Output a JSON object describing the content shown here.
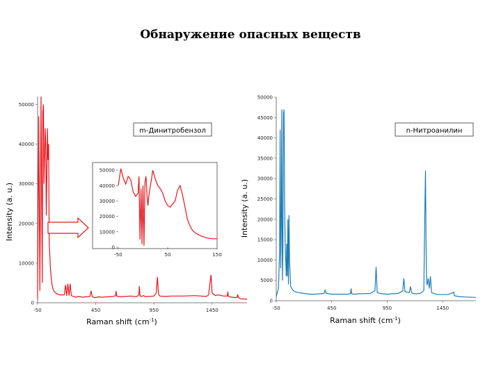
{
  "slide": {
    "title": "Обнаружение опасных веществ"
  },
  "chart_data": [
    {
      "type": "line",
      "legend": "m-Динитробензол",
      "ylabel": "Intensity (a. u.)",
      "xlabel_main": "Raman shift (cm",
      "xlabel_sup": "-1",
      "xlabel_end": ")",
      "xlim": [
        -50,
        1750
      ],
      "ylim": [
        0,
        52000
      ],
      "xticks": [
        -50,
        450,
        950,
        1450
      ],
      "yticks": [
        0,
        10000,
        20000,
        30000,
        40000,
        50000
      ],
      "color": "#e8141a",
      "grid": false,
      "series": [
        {
          "x": [
            -50,
            -40,
            -30,
            -20,
            -10,
            -5,
            0,
            5,
            10,
            15,
            20,
            25,
            30,
            35,
            40,
            45,
            50,
            55,
            60,
            65,
            70,
            75,
            80,
            85,
            90,
            95,
            100,
            110,
            120,
            130,
            140,
            150,
            160,
            170,
            180,
            190,
            200,
            210,
            220,
            230,
            240,
            250,
            260,
            270,
            280,
            290,
            300,
            320,
            340,
            360,
            380,
            400,
            410,
            420,
            430,
            440,
            460,
            480,
            500,
            550,
            600,
            620,
            625,
            630,
            640,
            660,
            700,
            750,
            800,
            820,
            825,
            830,
            840,
            860,
            880,
            900,
            950,
            970,
            980,
            990,
            1000,
            1050,
            1100,
            1200,
            1300,
            1400,
            1420,
            1435,
            1440,
            1445,
            1450,
            1460,
            1480,
            1500,
            1550,
            1580,
            1585,
            1590,
            1600,
            1650,
            1665,
            1670,
            1675,
            1680,
            1700,
            1750
          ],
          "y": [
            1000,
            47000,
            3000,
            52000,
            5000,
            48000,
            50000,
            30000,
            36000,
            44000,
            40000,
            22000,
            33000,
            44000,
            36000,
            40000,
            15000,
            12000,
            9000,
            7000,
            5500,
            4500,
            3800,
            3300,
            3000,
            2800,
            2600,
            2400,
            2200,
            2100,
            2000,
            2000,
            2000,
            2000,
            2000,
            4500,
            1800,
            4800,
            1800,
            4800,
            1800,
            1700,
            1600,
            1500,
            1400,
            1500,
            1600,
            1500,
            1400,
            1500,
            1500,
            1600,
            3000,
            1500,
            1400,
            1300,
            1400,
            1500,
            1400,
            1500,
            1600,
            1800,
            3000,
            1700,
            1600,
            1500,
            1600,
            1700,
            1500,
            2000,
            4200,
            1800,
            1600,
            1800,
            1500,
            1600,
            1700,
            2500,
            6500,
            2200,
            1700,
            1600,
            1700,
            1700,
            1800,
            1600,
            2000,
            5800,
            7000,
            5000,
            2500,
            2200,
            1800,
            2000,
            1700,
            1700,
            2800,
            1600,
            1500,
            1300,
            1400,
            2100,
            1300,
            1200,
            1000,
            900
          ]
        }
      ]
    },
    {
      "type": "line",
      "ylabel": "",
      "xlim": [
        -50,
        150
      ],
      "ylim": [
        0,
        55000
      ],
      "xticks": [
        -50,
        50,
        150
      ],
      "yticks": [
        0,
        10000,
        20000,
        30000,
        40000,
        50000
      ],
      "color": "#e8141a",
      "grid": false,
      "series": [
        {
          "x": [
            -50,
            -45,
            -40,
            -35,
            -30,
            -25,
            -20,
            -15,
            -10,
            -8,
            -6,
            -4,
            -2,
            0,
            2,
            4,
            6,
            8,
            10,
            12,
            15,
            20,
            25,
            30,
            35,
            40,
            45,
            50,
            55,
            60,
            65,
            70,
            75,
            80,
            85,
            90,
            95,
            100,
            105,
            110,
            120,
            130,
            140,
            150
          ],
          "y": [
            40000,
            51000,
            45000,
            41000,
            46000,
            44000,
            36000,
            33000,
            35000,
            46000,
            5000,
            38000,
            2000,
            40000,
            1000,
            42000,
            46000,
            34000,
            27000,
            34000,
            40000,
            50000,
            44000,
            40000,
            38000,
            35000,
            30000,
            27000,
            26000,
            28000,
            30000,
            37000,
            40000,
            34000,
            26000,
            18000,
            14000,
            11000,
            9500,
            8500,
            7000,
            6000,
            5500,
            5500
          ]
        }
      ]
    },
    {
      "type": "line",
      "legend": "n-Нитроанилин",
      "ylabel": "Intensity (a. u.)",
      "xlabel_main": "Raman shift (cm",
      "xlabel_sup": "-1",
      "xlabel_end": ")",
      "xlim": [
        -50,
        1750
      ],
      "ylim": [
        0,
        50000
      ],
      "xticks": [
        -50,
        450,
        950,
        1450
      ],
      "yticks": [
        0,
        5000,
        10000,
        15000,
        20000,
        25000,
        30000,
        35000,
        40000,
        45000,
        50000
      ],
      "color": "#1a7db8",
      "grid": false,
      "series": [
        {
          "x": [
            -50,
            -30,
            -20,
            -15,
            -10,
            -5,
            0,
            3,
            6,
            10,
            15,
            20,
            25,
            30,
            35,
            40,
            45,
            50,
            55,
            60,
            65,
            70,
            80,
            100,
            120,
            150,
            200,
            250,
            300,
            380,
            390,
            400,
            450,
            500,
            600,
            620,
            625,
            630,
            650,
            700,
            800,
            840,
            850,
            860,
            900,
            950,
            1000,
            1050,
            1090,
            1100,
            1110,
            1150,
            1160,
            1170,
            1180,
            1200,
            1250,
            1280,
            1290,
            1295,
            1300,
            1305,
            1310,
            1320,
            1330,
            1340,
            1350,
            1400,
            1500,
            1550,
            1555,
            1560,
            1600,
            1650,
            1750
          ],
          "y": [
            1000,
            3000,
            12000,
            42000,
            8000,
            18000,
            47000,
            20000,
            5000,
            12000,
            46000,
            47000,
            25000,
            14000,
            10000,
            6000,
            14000,
            6000,
            20000,
            4000,
            21000,
            10000,
            3500,
            2600,
            2200,
            2000,
            1800,
            1600,
            1600,
            1800,
            2600,
            1800,
            1600,
            1600,
            1600,
            1800,
            3000,
            1700,
            1600,
            1700,
            1800,
            2500,
            8300,
            2000,
            1700,
            1600,
            1700,
            1800,
            2400,
            5500,
            2200,
            2000,
            3500,
            2000,
            1800,
            1700,
            1800,
            2500,
            24000,
            32000,
            14000,
            5500,
            3800,
            5500,
            3000,
            6000,
            2000,
            1500,
            1500,
            2100,
            1300,
            1200,
            1000,
            900,
            800
          ]
        }
      ]
    }
  ]
}
